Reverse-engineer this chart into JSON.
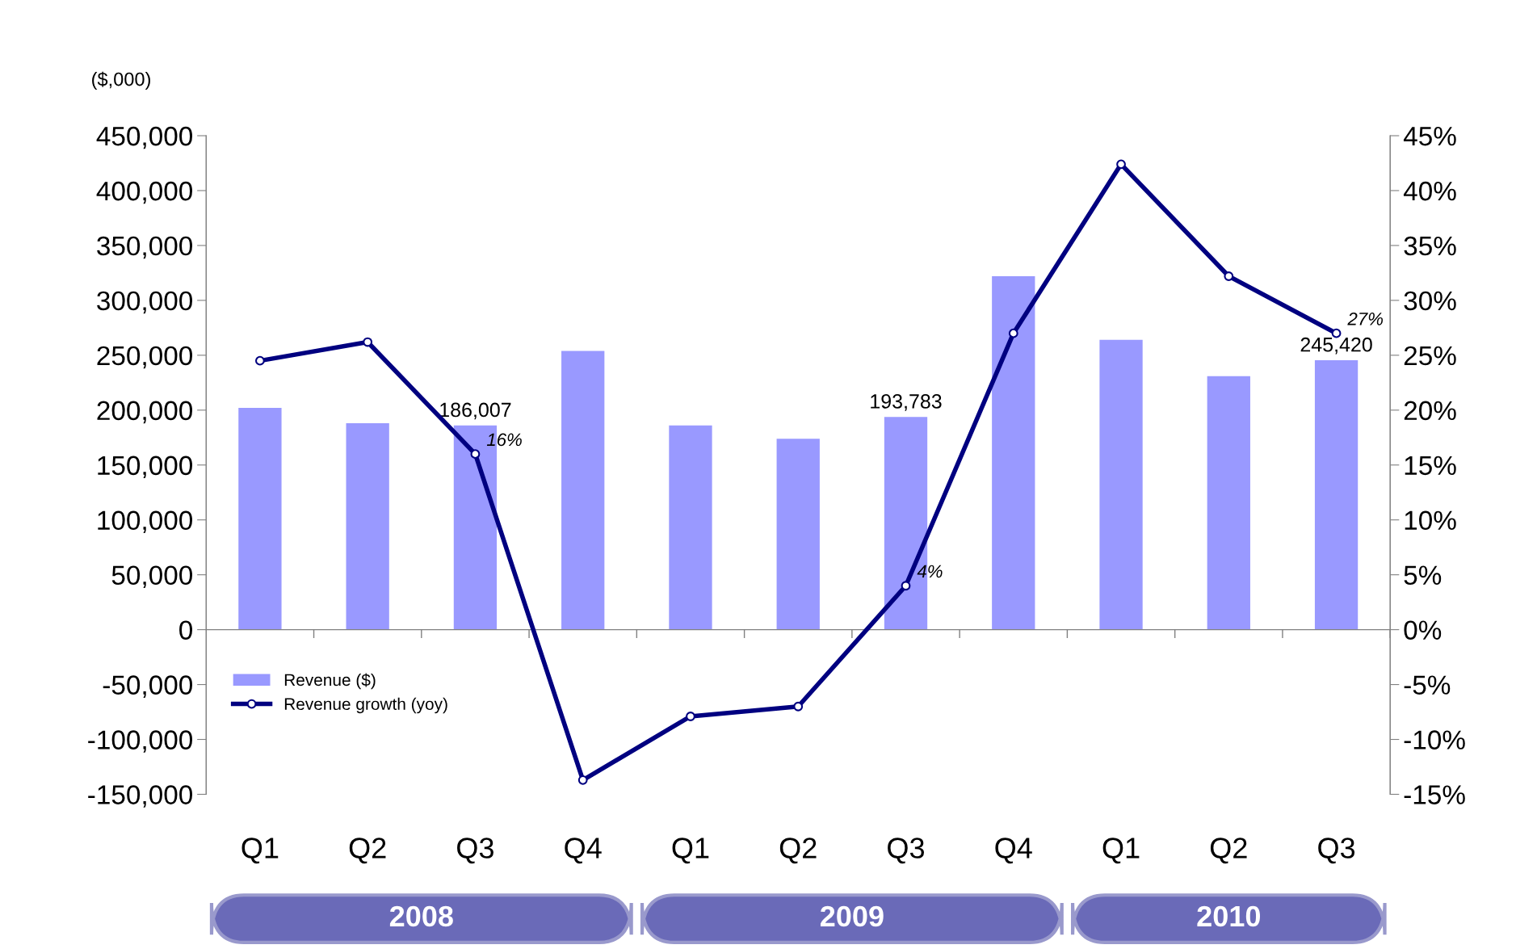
{
  "chart_data": {
    "type": "bar",
    "categories": [
      "Q1",
      "Q2",
      "Q3",
      "Q4",
      "Q1",
      "Q2",
      "Q3",
      "Q4",
      "Q1",
      "Q2",
      "Q3"
    ],
    "series": [
      {
        "name": "Revenue ($)",
        "color": "#9999ff",
        "values": [
          202000,
          188000,
          186007,
          254000,
          186000,
          174000,
          193783,
          322000,
          264000,
          231000,
          245420
        ],
        "value_labels": [
          null,
          null,
          "186,007",
          null,
          null,
          null,
          "193,783",
          null,
          null,
          null,
          "245,420"
        ]
      },
      {
        "name": "Revenue growth (yoy)",
        "type": "line",
        "axis": "y2",
        "color": "#000080",
        "marker": "circle",
        "values": [
          24.5,
          26.2,
          16,
          -13.7,
          -7.9,
          -7.0,
          4,
          27.0,
          42.4,
          32.2,
          27
        ],
        "value_labels": [
          null,
          null,
          "16%",
          null,
          null,
          null,
          "4%",
          null,
          null,
          null,
          "27%"
        ]
      }
    ],
    "ylim": [
      -150000,
      450000
    ],
    "yticks": [
      {
        "value": -150000,
        "label": "-150,000"
      },
      {
        "value": -100000,
        "label": "-100,000"
      },
      {
        "value": -50000,
        "label": "-50,000"
      },
      0,
      {
        "value": 50000,
        "label": "50,000"
      },
      {
        "value": 100000,
        "label": "100,000"
      },
      {
        "value": 150000,
        "label": "150,000"
      },
      {
        "value": 200000,
        "label": "200,000"
      },
      {
        "value": 250000,
        "label": "250,000"
      },
      {
        "value": 300000,
        "label": "300,000"
      },
      {
        "value": 350000,
        "label": "350,000"
      },
      {
        "value": 400000,
        "label": "400,000"
      },
      {
        "value": 450000,
        "label": "450,000"
      }
    ],
    "y2lim": [
      -15,
      45
    ],
    "y2ticks": [
      {
        "value": -15,
        "label": "-15%"
      },
      {
        "value": -10,
        "label": "-10%"
      },
      {
        "value": -5,
        "label": "-5%"
      },
      {
        "value": 0,
        "label": "0%"
      },
      {
        "value": 5,
        "label": "5%"
      },
      {
        "value": 10,
        "label": "10%"
      },
      {
        "value": 15,
        "label": "15%"
      },
      {
        "value": 20,
        "label": "20%"
      },
      {
        "value": 25,
        "label": "25%"
      },
      {
        "value": 30,
        "label": "30%"
      },
      {
        "value": 35,
        "label": "35%"
      },
      {
        "value": 40,
        "label": "40%"
      },
      {
        "value": 45,
        "label": "45%"
      }
    ],
    "annotations": [
      "($,000)",
      "2008",
      "2009",
      "2010"
    ],
    "legend": "bottom left"
  }
}
